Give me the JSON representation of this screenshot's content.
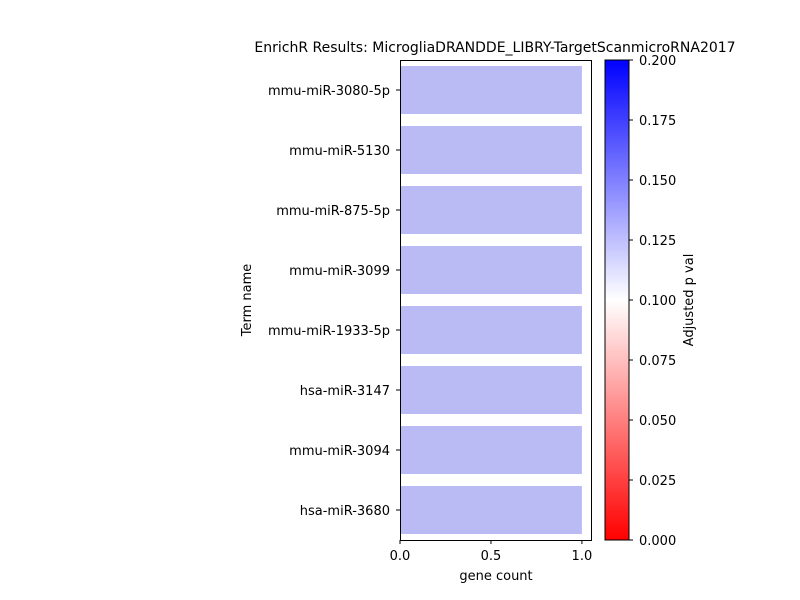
{
  "chart_data": {
    "type": "bar",
    "orientation": "horizontal",
    "title": "EnrichR Results: MicrogliaDRANDDE_LIBRY-TargetScanmicroRNA2017",
    "xlabel": "gene count",
    "ylabel": "Term name",
    "categories": [
      "mmu-miR-3080-5p",
      "mmu-miR-5130",
      "mmu-miR-875-5p",
      "mmu-miR-3099",
      "mmu-miR-1933-5p",
      "hsa-miR-3147",
      "mmu-miR-3094",
      "hsa-miR-3680"
    ],
    "values": [
      1,
      1,
      1,
      1,
      1,
      1,
      1,
      1
    ],
    "bar_color": "#babaf5",
    "xlim": [
      0,
      1.05
    ],
    "xticks": [
      "0.0",
      "0.5",
      "1.0"
    ],
    "xtick_values": [
      0,
      0.5,
      1.0
    ],
    "colorbar": {
      "label": "Adjusted p val",
      "range": [
        0,
        0.2
      ],
      "ticks": [
        "0.000",
        "0.025",
        "0.050",
        "0.075",
        "0.100",
        "0.125",
        "0.150",
        "0.175",
        "0.200"
      ],
      "tick_values": [
        0,
        0.025,
        0.05,
        0.075,
        0.1,
        0.125,
        0.15,
        0.175,
        0.2
      ],
      "colors": [
        "#ff0000",
        "#ffffff",
        "#0000ff"
      ]
    }
  }
}
